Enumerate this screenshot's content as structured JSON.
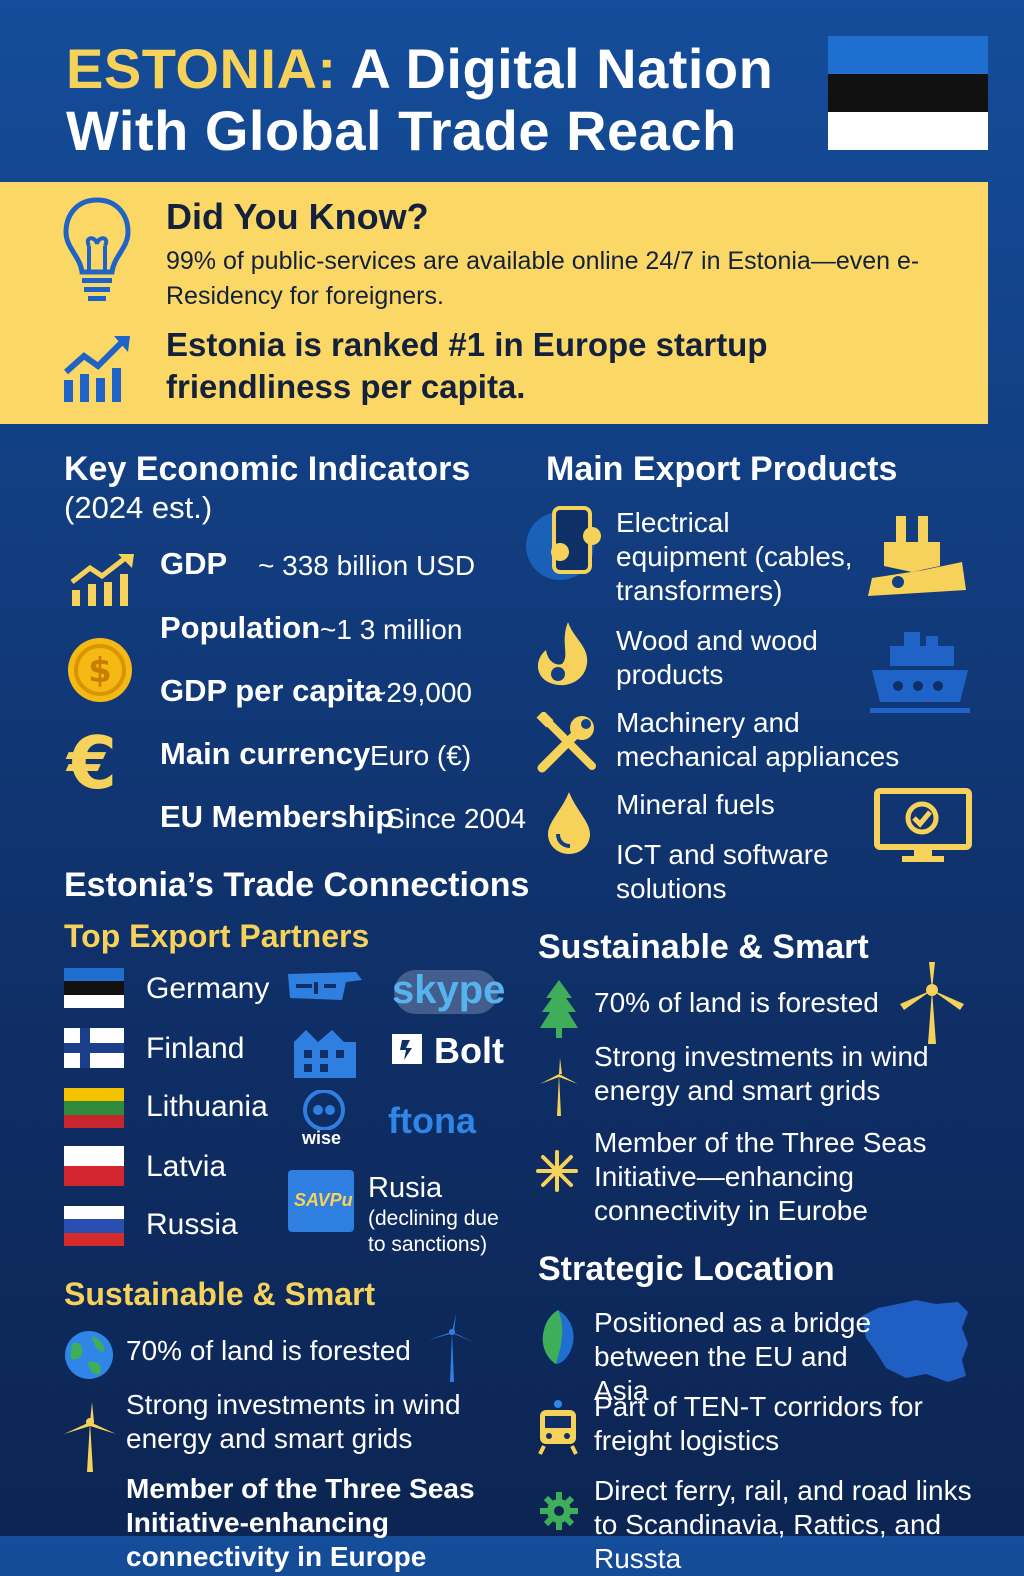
{
  "header": {
    "title_highlight": "ESTONIA:",
    "title_rest": " A Digital Nation",
    "title_line2": "With Global Trade Reach"
  },
  "did_you_know": {
    "heading": "Did You Know?",
    "text": "99% of public-services are available online 24/7 in Estonia—even e-Residency for foreigners.",
    "ranking": "Estonia is ranked #1 in Europe    startup friendliness per capita."
  },
  "indicators": {
    "heading": "Key Economic Indicators",
    "subheading": "(2024 est.)",
    "items": [
      {
        "label": "GDP",
        "value": "~ 338 billion USD"
      },
      {
        "label": "Population",
        "value": "~1 3 million"
      },
      {
        "label": "GDP per capita",
        "value": "~29,000"
      },
      {
        "label": "Main currency",
        "value": "Euro (€)"
      },
      {
        "label": "EU Membership",
        "value": "Since 2004"
      }
    ]
  },
  "exports": {
    "heading": "Main Export Products",
    "items": [
      {
        "text": "Electrical equipment (cables, transformers)"
      },
      {
        "text": "Wood and wood products"
      },
      {
        "text": "Machinery and mechanical appliances"
      },
      {
        "text": "Mineral fuels"
      },
      {
        "text": "ICT and software solutions"
      }
    ]
  },
  "trade": {
    "heading": "Estonia’s Trade Connections",
    "subheading": "Top Export Partners",
    "partners": [
      {
        "name": "Germany"
      },
      {
        "name": "Finland"
      },
      {
        "name": "Lithuania"
      },
      {
        "name": "Latvia"
      },
      {
        "name": "Russia"
      }
    ],
    "logos": {
      "skype": "skype",
      "bolt": "Bolt",
      "wise": "wise",
      "ftona": "ftona",
      "savpu": "SAVPu"
    },
    "russia_note_title": "Rusia",
    "russia_note": "(declining due to sanctions)"
  },
  "sustain_left": {
    "heading": "Sustainable & Smart",
    "items": [
      {
        "text": "70% of land is forested"
      },
      {
        "text": "Strong investments in wind energy and smart grids"
      },
      {
        "text": "Member of the Three Seas Initiative-enhancing connectivity in Europe"
      }
    ]
  },
  "sustain_right": {
    "heading": "Sustainable & Smart",
    "items": [
      {
        "text": "70% of land is forested"
      },
      {
        "text": "Strong investments in wind energy and smart grids"
      },
      {
        "text": "Member of the Three Seas Initiative—enhancing connectivity in Eurobe"
      }
    ]
  },
  "location": {
    "heading": "Strategic Location",
    "items": [
      {
        "text": "Positioned as a bridge between the EU and Asia"
      },
      {
        "text": "Part of TEN-T corridors for freight logistics"
      },
      {
        "text": "Direct ferry, rail, and road links to Scandinavia, Rattics, and Russta"
      }
    ]
  },
  "colors": {
    "accent_yellow": "#f7d25a",
    "banner_yellow": "#fbd865",
    "background_blue": "#144d9a",
    "flag_blue": "#1f6fd1"
  }
}
